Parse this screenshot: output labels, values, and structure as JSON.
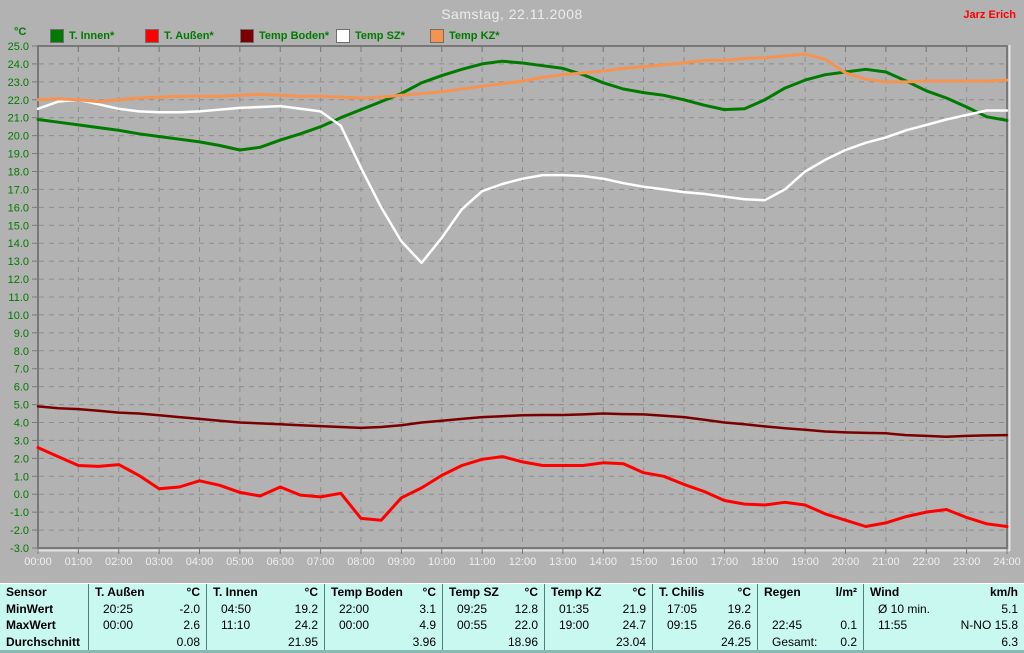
{
  "header": {
    "title": "Samstag, 22.11.2008",
    "author": "Jarz Erich"
  },
  "chart_data": {
    "type": "line",
    "title": "Samstag, 22.11.2008",
    "xlabel": "",
    "ylabel": "°C",
    "ylim": [
      -3,
      25
    ],
    "y_tick_step": 1.0,
    "y_tick_labels": [
      "25.0",
      "24.0",
      "23.0",
      "22.0",
      "21.0",
      "20.0",
      "19.0",
      "18.0",
      "17.0",
      "16.0",
      "15.0",
      "14.0",
      "13.0",
      "12.0",
      "11.0",
      "10.0",
      "9.0",
      "8.0",
      "7.0",
      "6.0",
      "5.0",
      "4.0",
      "3.0",
      "2.0",
      "1.0",
      "0.0",
      "-1.0",
      "-2.0",
      "-3.0"
    ],
    "x_hours": [
      0,
      24
    ],
    "x_step_hours": 0.5,
    "x_labels": [
      "00:00",
      "01:00",
      "02:00",
      "03:00",
      "04:00",
      "05:00",
      "06:00",
      "07:00",
      "08:00",
      "09:00",
      "10:00",
      "11:00",
      "12:00",
      "13:00",
      "14:00",
      "15:00",
      "16:00",
      "17:00",
      "18:00",
      "19:00",
      "20:00",
      "21:00",
      "22:00",
      "23:00",
      "24:00"
    ],
    "grid": true,
    "legend_position": "top",
    "series": [
      {
        "name": "T. Innen*",
        "color": "#007a00",
        "width": 3,
        "values": [
          20.9,
          20.75,
          20.6,
          20.45,
          20.3,
          20.1,
          19.95,
          19.8,
          19.65,
          19.45,
          19.2,
          19.35,
          19.75,
          20.1,
          20.5,
          21.0,
          21.45,
          21.9,
          22.35,
          22.95,
          23.35,
          23.7,
          24.0,
          24.15,
          24.05,
          23.9,
          23.75,
          23.4,
          22.95,
          22.6,
          22.4,
          22.25,
          22.0,
          21.7,
          21.45,
          21.5,
          22.0,
          22.65,
          23.1,
          23.4,
          23.55,
          23.7,
          23.55,
          23.05,
          22.5,
          22.1,
          21.6,
          21.05,
          20.85
        ]
      },
      {
        "name": "T. Außen*",
        "color": "#ff0000",
        "width": 3,
        "values": [
          2.6,
          2.1,
          1.6,
          1.55,
          1.65,
          1.05,
          0.3,
          0.4,
          0.75,
          0.5,
          0.1,
          -0.1,
          0.4,
          -0.05,
          -0.15,
          0.05,
          -1.35,
          -1.45,
          -0.2,
          0.35,
          1.05,
          1.6,
          1.95,
          2.1,
          1.8,
          1.6,
          1.6,
          1.6,
          1.75,
          1.7,
          1.2,
          1.0,
          0.55,
          0.15,
          -0.35,
          -0.55,
          -0.6,
          -0.45,
          -0.6,
          -1.1,
          -1.45,
          -1.8,
          -1.6,
          -1.25,
          -1.0,
          -0.85,
          -1.3,
          -1.65,
          -1.8
        ]
      },
      {
        "name": "Temp Boden*",
        "color": "#7a0000",
        "width": 2.5,
        "values": [
          4.9,
          4.8,
          4.75,
          4.65,
          4.55,
          4.5,
          4.4,
          4.3,
          4.2,
          4.1,
          4.0,
          3.95,
          3.9,
          3.85,
          3.8,
          3.75,
          3.7,
          3.75,
          3.85,
          4.0,
          4.1,
          4.2,
          4.3,
          4.35,
          4.4,
          4.42,
          4.42,
          4.45,
          4.5,
          4.47,
          4.45,
          4.38,
          4.3,
          4.15,
          4.0,
          3.9,
          3.78,
          3.68,
          3.6,
          3.5,
          3.45,
          3.42,
          3.4,
          3.3,
          3.25,
          3.2,
          3.25,
          3.28,
          3.3
        ]
      },
      {
        "name": "Temp SZ*",
        "color": "#ffffff",
        "width": 2.5,
        "values": [
          21.5,
          21.9,
          22.0,
          21.75,
          21.5,
          21.35,
          21.3,
          21.3,
          21.35,
          21.45,
          21.55,
          21.6,
          21.65,
          21.5,
          21.35,
          20.55,
          18.2,
          16.0,
          14.1,
          12.9,
          14.3,
          15.9,
          16.9,
          17.3,
          17.6,
          17.8,
          17.8,
          17.75,
          17.6,
          17.35,
          17.15,
          17.0,
          16.85,
          16.75,
          16.6,
          16.45,
          16.4,
          17.0,
          18.0,
          18.65,
          19.2,
          19.6,
          19.9,
          20.3,
          20.6,
          20.9,
          21.15,
          21.4,
          21.4
        ]
      },
      {
        "name": "Temp KZ*",
        "color": "#f79350",
        "width": 3,
        "values": [
          22.0,
          22.05,
          22.0,
          21.9,
          22.0,
          22.1,
          22.15,
          22.2,
          22.2,
          22.2,
          22.25,
          22.3,
          22.25,
          22.2,
          22.2,
          22.15,
          22.1,
          22.15,
          22.25,
          22.35,
          22.45,
          22.6,
          22.75,
          22.9,
          23.05,
          23.25,
          23.4,
          23.5,
          23.6,
          23.75,
          23.85,
          23.95,
          24.05,
          24.2,
          24.2,
          24.3,
          24.35,
          24.45,
          24.55,
          24.25,
          23.5,
          23.15,
          23.0,
          23.0,
          23.05,
          23.05,
          23.05,
          23.05,
          23.1
        ]
      }
    ]
  },
  "table": {
    "row_labels": [
      "Sensor",
      "MinWert",
      "MaxWert",
      "Durchschnitt"
    ],
    "columns": [
      {
        "name": "T. Außen",
        "unit": "°C",
        "min": [
          "20:25",
          "-2.0"
        ],
        "max": [
          "00:00",
          "2.6"
        ],
        "avg": [
          "",
          "0.08"
        ]
      },
      {
        "name": "T. Innen",
        "unit": "°C",
        "min": [
          "04:50",
          "19.2"
        ],
        "max": [
          "11:10",
          "24.2"
        ],
        "avg": [
          "",
          "21.95"
        ]
      },
      {
        "name": "Temp Boden",
        "unit": "°C",
        "min": [
          "22:00",
          "3.1"
        ],
        "max": [
          "00:00",
          "4.9"
        ],
        "avg": [
          "",
          "3.96"
        ]
      },
      {
        "name": "Temp SZ",
        "unit": "°C",
        "min": [
          "09:25",
          "12.8"
        ],
        "max": [
          "00:55",
          "22.0"
        ],
        "avg": [
          "",
          "18.96"
        ]
      },
      {
        "name": "Temp KZ",
        "unit": "°C",
        "min": [
          "01:35",
          "21.9"
        ],
        "max": [
          "19:00",
          "24.7"
        ],
        "avg": [
          "",
          "23.04"
        ]
      },
      {
        "name": "T. Chilis",
        "unit": "°C",
        "min": [
          "17:05",
          "19.2"
        ],
        "max": [
          "09:15",
          "26.6"
        ],
        "avg": [
          "",
          "24.25"
        ]
      },
      {
        "name": "Regen",
        "unit": "l/m²",
        "min": [
          "",
          ""
        ],
        "max": [
          "22:45",
          "0.1"
        ],
        "avg": [
          "Gesamt:",
          "0.2"
        ]
      },
      {
        "name": "Wind",
        "unit": "km/h",
        "min": [
          "Ø 10 min.",
          "5.1"
        ],
        "max": [
          "11:55",
          "N-NO 15.8"
        ],
        "avg": [
          "",
          "6.3"
        ]
      }
    ]
  },
  "colors": {
    "background": "#b2b2b2",
    "grid": "#8d8d8d",
    "axis_border": "#787878",
    "axis_highlight": "#e2e2e2",
    "y_label_text": "#007a00",
    "x_label_text": "#efefef",
    "title_text": "#ececec",
    "author_text": "#ff0000",
    "legend_text": "#007a00",
    "table_background": "#c9f8f0",
    "table_separator": "#4f8080",
    "table_text": "#000000"
  }
}
